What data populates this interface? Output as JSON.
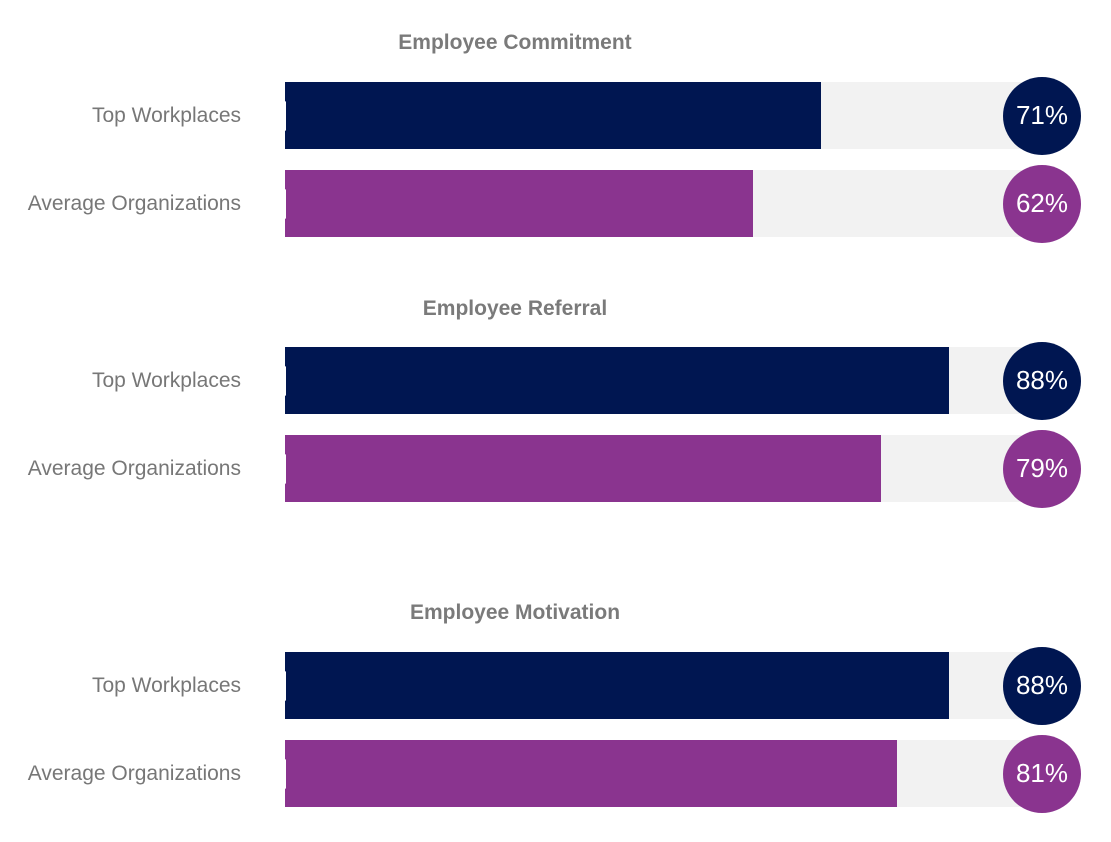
{
  "colors": {
    "top_workplaces": "#001651",
    "average_organizations": "#8a348f",
    "track": "#f2f2f2",
    "title_text": "#7a7a7a",
    "label_text": "#777777"
  },
  "chart_data": {
    "type": "bar",
    "orientation": "horizontal",
    "xlim": [
      0,
      100
    ],
    "unit": "%",
    "groups": [
      {
        "title": "Employee Commitment",
        "bars": [
          {
            "label": "Top Workplaces",
            "value": 71,
            "value_label": "71%"
          },
          {
            "label": "Average Organizations",
            "value": 62,
            "value_label": "62%"
          }
        ]
      },
      {
        "title": "Employee Referral",
        "bars": [
          {
            "label": "Top Workplaces",
            "value": 88,
            "value_label": "88%"
          },
          {
            "label": "Average Organizations",
            "value": 79,
            "value_label": "79%"
          }
        ]
      },
      {
        "title": "Employee Motivation",
        "bars": [
          {
            "label": "Top Workplaces",
            "value": 88,
            "value_label": "88%"
          },
          {
            "label": "Average Organizations",
            "value": 81,
            "value_label": "81%"
          }
        ]
      }
    ]
  }
}
